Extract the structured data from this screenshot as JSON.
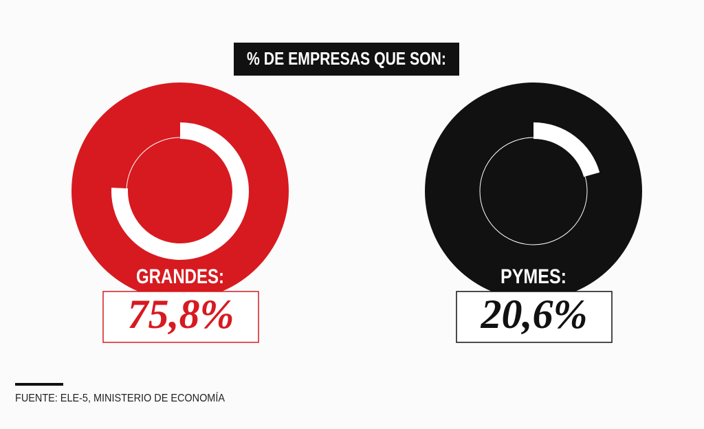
{
  "title": "% DE EMPRESAS QUE SON:",
  "source": "FUENTE: ELE-5, MINISTERIO DE ECONOMÍA",
  "chart_data": [
    {
      "type": "gauge",
      "label": "GRANDES:",
      "values": [
        75.8
      ],
      "value_labels": [
        "75,8%"
      ],
      "ylim": [
        0,
        100
      ],
      "color": "#d71a20"
    },
    {
      "type": "gauge",
      "label": "PYMES:",
      "values": [
        20.6
      ],
      "value_labels": [
        "20,6%"
      ],
      "ylim": [
        0,
        100
      ],
      "color": "#111111"
    }
  ]
}
